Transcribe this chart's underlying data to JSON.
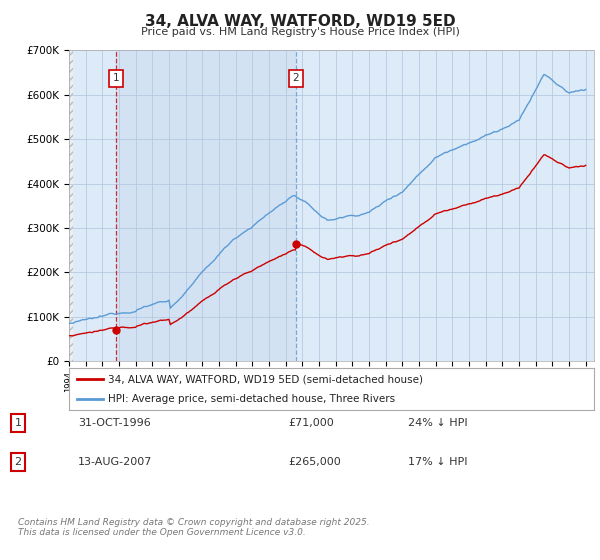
{
  "title": "34, ALVA WAY, WATFORD, WD19 5ED",
  "subtitle": "Price paid vs. HM Land Registry's House Price Index (HPI)",
  "legend_line1": "34, ALVA WAY, WATFORD, WD19 5ED (semi-detached house)",
  "legend_line2": "HPI: Average price, semi-detached house, Three Rivers",
  "footer": "Contains HM Land Registry data © Crown copyright and database right 2025.\nThis data is licensed under the Open Government Licence v3.0.",
  "annotation1_date": "31-OCT-1996",
  "annotation1_price": "£71,000",
  "annotation1_hpi": "24% ↓ HPI",
  "annotation2_date": "13-AUG-2007",
  "annotation2_price": "£265,000",
  "annotation2_hpi": "17% ↓ HPI",
  "sale1_year": 1996.83,
  "sale1_price": 71000,
  "sale2_year": 2007.62,
  "sale2_price": 265000,
  "hpi_color": "#5b9bd5",
  "price_color": "#cc0000",
  "annotation_color": "#cc0000",
  "vline1_color": "#cc0000",
  "vline2_color": "#5b9bd5",
  "plot_bg_color": "#ddeaf7",
  "hatch_bg_color": "#e8e8e8",
  "shaded_bg_color": "#ddeaf7",
  "grid_color": "#b0c4de",
  "background_color": "#ffffff",
  "ylim_max": 700000,
  "xmin": 1994,
  "xmax": 2025.5
}
